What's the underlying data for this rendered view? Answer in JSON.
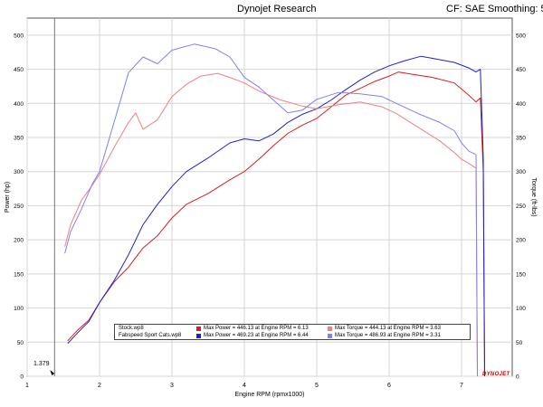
{
  "header": {
    "title": "Dynojet Research",
    "settings": "CF: SAE Smoothing: 5"
  },
  "brand": "DYNOJET",
  "marker": {
    "label": "1.379",
    "x": 1.379
  },
  "legend": {
    "rows": [
      {
        "run": "Stock.wp8",
        "power_color": "#d42020",
        "power_text": "Max Power = 446.13 at Engine RPM = 6.13",
        "torque_color": "#f08080",
        "torque_text": "Max Torque = 444.13 at Engine RPM = 3.63"
      },
      {
        "run": "Fabspeed Sport Cats.wp8",
        "power_color": "#2020c8",
        "power_text": "Max Power = 469.23 at Engine RPM = 6.44",
        "torque_color": "#8080f0",
        "torque_text": "Max Torque = 486.93 at Engine RPM = 3.31"
      }
    ]
  },
  "chart_data": {
    "type": "line",
    "xlabel": "Engine RPM (rpmx1000)",
    "ylabel_left": "Power (hp)",
    "ylabel_right": "Torque (ft-lbs)",
    "xlim": [
      1,
      7.7
    ],
    "ylim": [
      0,
      525
    ],
    "xticks": [
      1,
      2,
      3,
      4,
      5,
      6,
      7
    ],
    "yticks": [
      0,
      50,
      100,
      150,
      200,
      250,
      300,
      350,
      400,
      450,
      500
    ],
    "grid": true,
    "legend_position": "bottom-center",
    "series": [
      {
        "name": "Stock.wp8 Power",
        "color": "#d42020",
        "x": [
          1.56,
          1.7,
          1.85,
          2.0,
          2.2,
          2.4,
          2.6,
          2.8,
          3.0,
          3.2,
          3.5,
          3.8,
          4.0,
          4.2,
          4.4,
          4.6,
          4.8,
          5.0,
          5.2,
          5.4,
          5.6,
          5.8,
          6.0,
          6.13,
          6.3,
          6.6,
          6.9,
          7.1,
          7.2,
          7.26,
          7.3
        ],
        "y": [
          52,
          68,
          82,
          108,
          138,
          160,
          188,
          206,
          232,
          252,
          268,
          288,
          300,
          318,
          338,
          356,
          368,
          378,
          395,
          412,
          422,
          432,
          440,
          446,
          443,
          438,
          430,
          412,
          402,
          408,
          300
        ]
      },
      {
        "name": "Fabspeed Sport Cats.wp8 Power",
        "color": "#2020c8",
        "x": [
          1.56,
          1.7,
          1.85,
          2.0,
          2.2,
          2.4,
          2.6,
          2.8,
          3.0,
          3.2,
          3.5,
          3.8,
          4.0,
          4.2,
          4.4,
          4.6,
          4.8,
          5.0,
          5.2,
          5.4,
          5.6,
          5.8,
          6.0,
          6.2,
          6.44,
          6.6,
          6.9,
          7.1,
          7.2,
          7.26,
          7.3
        ],
        "y": [
          48,
          64,
          80,
          108,
          140,
          178,
          222,
          252,
          278,
          300,
          320,
          342,
          348,
          345,
          355,
          372,
          384,
          392,
          405,
          420,
          434,
          446,
          455,
          462,
          469,
          466,
          460,
          452,
          446,
          450,
          320
        ]
      },
      {
        "name": "Stock.wp8 Torque",
        "color": "#f08080",
        "x": [
          1.52,
          1.6,
          1.75,
          1.9,
          2.0,
          2.2,
          2.4,
          2.5,
          2.6,
          2.8,
          3.0,
          3.2,
          3.4,
          3.63,
          3.8,
          4.0,
          4.2,
          4.5,
          4.8,
          5.0,
          5.3,
          5.6,
          5.9,
          6.1,
          6.4,
          6.7,
          6.9,
          7.0,
          7.1,
          7.2
        ],
        "y": [
          190,
          222,
          258,
          280,
          296,
          335,
          372,
          386,
          362,
          376,
          410,
          428,
          440,
          444,
          438,
          430,
          418,
          405,
          396,
          392,
          398,
          402,
          395,
          385,
          365,
          345,
          328,
          318,
          312,
          305
        ]
      },
      {
        "name": "Fabspeed Sport Cats.wp8 Torque",
        "color": "#8080f0",
        "x": [
          1.52,
          1.6,
          1.75,
          1.9,
          2.0,
          2.2,
          2.4,
          2.6,
          2.8,
          3.0,
          3.31,
          3.6,
          3.8,
          4.0,
          4.2,
          4.4,
          4.6,
          4.8,
          5.0,
          5.3,
          5.6,
          5.9,
          6.1,
          6.4,
          6.7,
          6.9,
          7.0,
          7.1,
          7.2
        ],
        "y": [
          180,
          212,
          245,
          282,
          300,
          372,
          445,
          468,
          458,
          478,
          487,
          480,
          468,
          438,
          424,
          405,
          386,
          390,
          406,
          416,
          414,
          410,
          400,
          385,
          372,
          360,
          342,
          330,
          325
        ]
      }
    ]
  }
}
